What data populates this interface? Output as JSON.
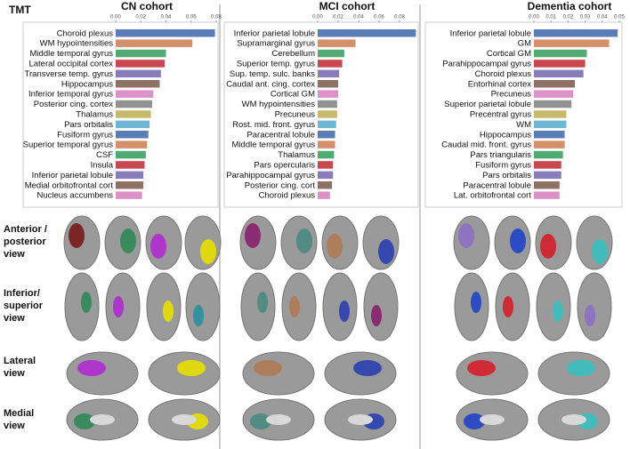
{
  "panel_label": "TMT",
  "view_labels": [
    "Anterior / posterior view",
    "Inferior/ superior view",
    "Lateral view",
    "Medial view"
  ],
  "chart_data": [
    {
      "type": "bar",
      "orientation": "horizontal",
      "title": "CN cohort",
      "categories": [
        "Choroid plexus",
        "WM hypointensities",
        "Middle temporal gyrus",
        "Lateral occipital cortex",
        "Transverse temp. gyrus",
        "Hippocampus",
        "Inferior temporal gyrus",
        "Posterior cing. cortex",
        "Thalamus",
        "Pars orbitalis",
        "Fusiform gyrus",
        "Superior temporal gyrus",
        "CSF",
        "Insula",
        "Inferior parietal lobule",
        "Medial orbitofrontal cort",
        "Nucleus accumbens"
      ],
      "values": [
        0.079,
        0.061,
        0.04,
        0.039,
        0.036,
        0.035,
        0.03,
        0.029,
        0.028,
        0.027,
        0.026,
        0.025,
        0.024,
        0.023,
        0.022,
        0.022,
        0.021
      ],
      "colors": [
        "#5a7db8",
        "#d4906a",
        "#4fab72",
        "#c9484f",
        "#8a7cba",
        "#8e7064",
        "#dc92c6",
        "#929292",
        "#c6b96c",
        "#6fb6d2",
        "#5a7db8",
        "#d4906a",
        "#4fab72",
        "#c9484f",
        "#8a7cba",
        "#8e7064",
        "#dc92c6"
      ],
      "xlim": [
        0,
        0.08
      ],
      "xticks": [
        {
          "value": 0,
          "label": "0.00"
        },
        {
          "value": 0.02,
          "label": "0.02"
        },
        {
          "value": 0.04,
          "label": "0.04"
        },
        {
          "value": 0.06,
          "label": "0.06"
        },
        {
          "value": 0.08,
          "label": "0.08"
        }
      ]
    },
    {
      "type": "bar",
      "orientation": "horizontal",
      "title": "MCI cohort",
      "categories": [
        "Inferior parietal lobule",
        "Supramarginal gyrus",
        "Cerebellum",
        "Superior temp. gyrus",
        "Sup. temp. sulc. banks",
        "Caudal ant. cing. cortex",
        "Cortical GM",
        "WM hypointensities",
        "Precuneus",
        "Rost. mid. front. gyrus",
        "Paracentral lobule",
        "Middle temporal gyrus",
        "Thalamus",
        "Pars opercularis",
        "Parahippocampal gyrus",
        "Posterior cing. cort",
        "Choroid plexus"
      ],
      "values": [
        0.096,
        0.037,
        0.026,
        0.024,
        0.021,
        0.02,
        0.02,
        0.019,
        0.019,
        0.018,
        0.017,
        0.017,
        0.016,
        0.015,
        0.015,
        0.014,
        0.012
      ],
      "colors": [
        "#5a7db8",
        "#d4906a",
        "#4fab72",
        "#c9484f",
        "#8a7cba",
        "#8e7064",
        "#dc92c6",
        "#929292",
        "#c6b96c",
        "#6fb6d2",
        "#5a7db8",
        "#d4906a",
        "#4fab72",
        "#c9484f",
        "#8a7cba",
        "#8e7064",
        "#dc92c6"
      ],
      "xlim": [
        0,
        0.1
      ],
      "xticks": [
        {
          "value": 0,
          "label": "0.00"
        },
        {
          "value": 0.02,
          "label": "0.02"
        },
        {
          "value": 0.04,
          "label": "0.04"
        },
        {
          "value": 0.06,
          "label": "0.06"
        },
        {
          "value": 0.08,
          "label": "0.08"
        }
      ]
    },
    {
      "type": "bar",
      "orientation": "horizontal",
      "title": "Dementia cohort",
      "categories": [
        "Inferior parietal lobule",
        "GM",
        "Cortical GM",
        "Parahippocampal gyrus",
        "Choroid plexus",
        "Entorhinal cortex",
        "Precuneus",
        "Superior parietal lobule",
        "Precentral gyrus",
        "WM",
        "Hippocampus",
        "Caudal mid. front. gyrus",
        "Pars triangularis",
        "Fusiform gyrus",
        "Pars orbitalis",
        "Paracentral lobule",
        "Lat. orbitofrontal cort"
      ],
      "values": [
        0.049,
        0.044,
        0.031,
        0.03,
        0.029,
        0.024,
        0.023,
        0.022,
        0.019,
        0.019,
        0.018,
        0.018,
        0.017,
        0.016,
        0.016,
        0.015,
        0.015
      ],
      "colors": [
        "#5a7db8",
        "#d4906a",
        "#4fab72",
        "#c9484f",
        "#8a7cba",
        "#8e7064",
        "#dc92c6",
        "#929292",
        "#c6b96c",
        "#6fb6d2",
        "#5a7db8",
        "#d4906a",
        "#4fab72",
        "#c9484f",
        "#8a7cba",
        "#8e7064",
        "#dc92c6"
      ],
      "xlim": [
        0,
        0.05
      ],
      "xticks": [
        {
          "value": 0,
          "label": "0.00"
        },
        {
          "value": 0.01,
          "label": "0.01"
        },
        {
          "value": 0.02,
          "label": "0.02"
        },
        {
          "value": 0.03,
          "label": "0.03"
        },
        {
          "value": 0.04,
          "label": "0.04"
        },
        {
          "value": 0.05,
          "label": "0.05"
        }
      ]
    }
  ]
}
